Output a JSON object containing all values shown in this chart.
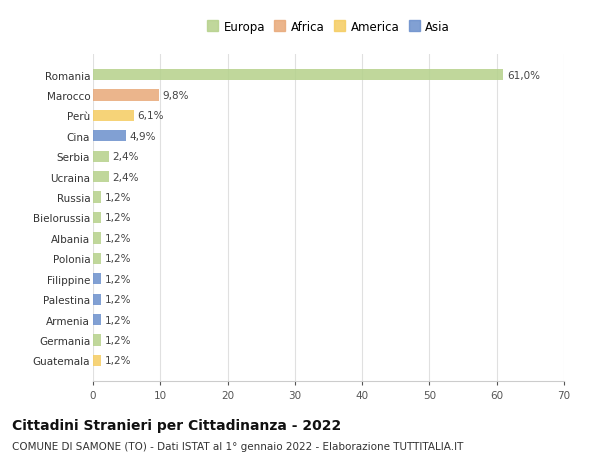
{
  "countries": [
    "Romania",
    "Marocco",
    "Perù",
    "Cina",
    "Serbia",
    "Ucraina",
    "Russia",
    "Bielorussia",
    "Albania",
    "Polonia",
    "Filippine",
    "Palestina",
    "Armenia",
    "Germania",
    "Guatemala"
  ],
  "values": [
    61.0,
    9.8,
    6.1,
    4.9,
    2.4,
    2.4,
    1.2,
    1.2,
    1.2,
    1.2,
    1.2,
    1.2,
    1.2,
    1.2,
    1.2
  ],
  "labels": [
    "61,0%",
    "9,8%",
    "6,1%",
    "4,9%",
    "2,4%",
    "2,4%",
    "1,2%",
    "1,2%",
    "1,2%",
    "1,2%",
    "1,2%",
    "1,2%",
    "1,2%",
    "1,2%",
    "1,2%"
  ],
  "colors": [
    "#b5d18a",
    "#e8a878",
    "#f5cc60",
    "#6b8fcc",
    "#b5d18a",
    "#b5d18a",
    "#b5d18a",
    "#b5d18a",
    "#b5d18a",
    "#b5d18a",
    "#6b8fcc",
    "#6b8fcc",
    "#6b8fcc",
    "#b5d18a",
    "#f5cc60"
  ],
  "legend_labels": [
    "Europa",
    "Africa",
    "America",
    "Asia"
  ],
  "legend_colors": [
    "#b5d18a",
    "#e8a878",
    "#f5cc60",
    "#6b8fcc"
  ],
  "title": "Cittadini Stranieri per Cittadinanza - 2022",
  "subtitle": "COMUNE DI SAMONE (TO) - Dati ISTAT al 1° gennaio 2022 - Elaborazione TUTTITALIA.IT",
  "xlim": [
    0,
    70
  ],
  "xticks": [
    0,
    10,
    20,
    30,
    40,
    50,
    60,
    70
  ],
  "background_color": "#ffffff",
  "grid_color": "#e0e0e0",
  "bar_height": 0.55,
  "title_fontsize": 10,
  "subtitle_fontsize": 7.5,
  "tick_fontsize": 7.5,
  "label_fontsize": 7.5,
  "legend_fontsize": 8.5
}
